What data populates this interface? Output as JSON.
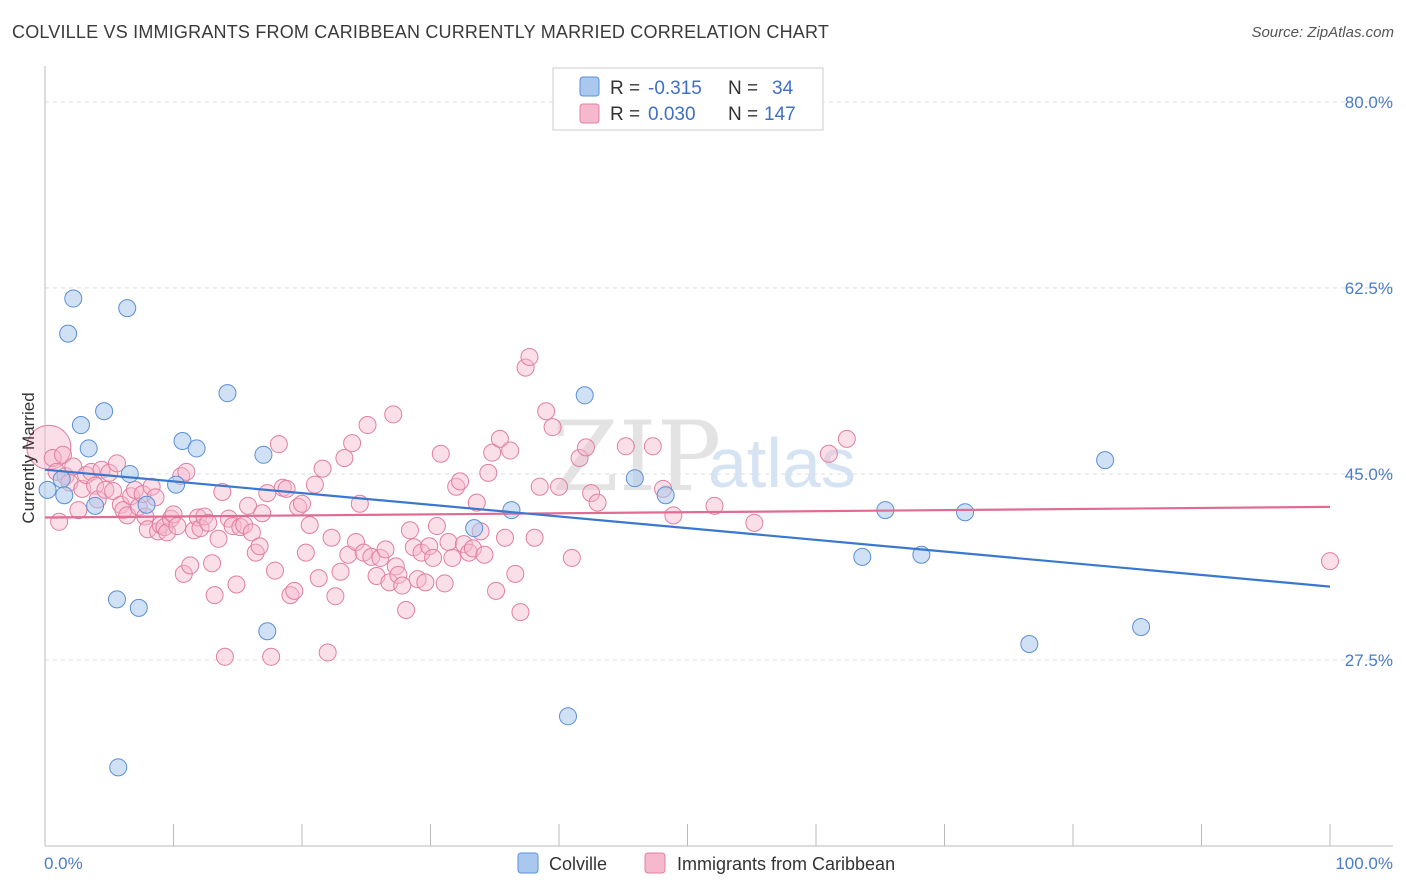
{
  "title": "COLVILLE VS IMMIGRANTS FROM CARIBBEAN CURRENTLY MARRIED CORRELATION CHART",
  "source": "Source: ZipAtlas.com",
  "watermark": {
    "zip": "ZIP",
    "atlas": "atlas"
  },
  "colors": {
    "blue_fill": "#aac8ee",
    "blue_stroke": "#5b8fd6",
    "blue_line": "#3a78d0",
    "pink_fill": "#f6b8cc",
    "pink_stroke": "#e07fa0",
    "pink_line": "#e06c93",
    "tick_color": "#4a7cc9",
    "grid": "#dddddd"
  },
  "legend": {
    "rows": [
      {
        "r_label": "R =",
        "r_value": "-0.315",
        "n_label": "N =",
        "n_value": "34"
      },
      {
        "r_label": "R =",
        "r_value": "0.030",
        "n_label": "N =",
        "n_value": "147"
      }
    ]
  },
  "chart_data": {
    "type": "scatter",
    "title": "COLVILLE VS IMMIGRANTS FROM CARIBBEAN CURRENTLY MARRIED CORRELATION CHART",
    "xlabel": "",
    "ylabel": "Currently Married",
    "xlim": [
      0,
      100
    ],
    "ylim": [
      10,
      83
    ],
    "x_tick_labels": [
      "0.0%",
      "100.0%"
    ],
    "y_ticks": [
      27.5,
      45.0,
      62.5,
      80.0
    ],
    "y_tick_labels": [
      "27.5%",
      "45.0%",
      "62.5%",
      "80.0%"
    ],
    "grid": true,
    "legend_position": "top-center",
    "series": [
      {
        "name": "Colville",
        "R": -0.315,
        "N": 34,
        "trend": {
          "x": [
            0,
            100
          ],
          "y": [
            45.4,
            34.4
          ]
        },
        "points": [
          [
            0.2,
            43.5
          ],
          [
            1.3,
            44.5
          ],
          [
            1.5,
            43.0
          ],
          [
            1.8,
            58.2
          ],
          [
            2.2,
            61.5
          ],
          [
            2.8,
            49.6
          ],
          [
            3.4,
            47.4
          ],
          [
            3.9,
            42.0
          ],
          [
            4.6,
            50.9
          ],
          [
            5.6,
            33.2
          ],
          [
            5.7,
            17.4
          ],
          [
            6.4,
            60.6
          ],
          [
            6.6,
            45.0
          ],
          [
            7.3,
            32.4
          ],
          [
            7.9,
            42.1
          ],
          [
            10.2,
            44.0
          ],
          [
            10.7,
            48.1
          ],
          [
            11.8,
            47.4
          ],
          [
            14.2,
            52.6
          ],
          [
            17.0,
            46.8
          ],
          [
            17.3,
            30.2
          ],
          [
            33.4,
            39.9
          ],
          [
            36.3,
            41.6
          ],
          [
            40.7,
            22.2
          ],
          [
            42.0,
            52.4
          ],
          [
            45.9,
            44.6
          ],
          [
            48.3,
            43.0
          ],
          [
            63.6,
            37.2
          ],
          [
            65.4,
            41.6
          ],
          [
            68.2,
            37.4
          ],
          [
            71.6,
            41.4
          ],
          [
            76.6,
            29.0
          ],
          [
            82.5,
            46.3
          ],
          [
            85.3,
            30.6
          ]
        ]
      },
      {
        "name": "Immigrants from Caribbean",
        "R": 0.03,
        "N": 147,
        "trend": {
          "x": [
            0,
            100
          ],
          "y": [
            40.9,
            41.9
          ]
        },
        "points": [
          [
            0.3,
            47.5
          ],
          [
            0.6,
            46.5
          ],
          [
            0.9,
            45.2
          ],
          [
            1.1,
            40.5
          ],
          [
            1.4,
            46.8
          ],
          [
            1.6,
            44.8
          ],
          [
            1.9,
            44.2
          ],
          [
            2.2,
            45.7
          ],
          [
            2.6,
            41.6
          ],
          [
            2.9,
            43.6
          ],
          [
            3.2,
            44.9
          ],
          [
            3.6,
            45.2
          ],
          [
            3.9,
            43.9
          ],
          [
            4.1,
            42.6
          ],
          [
            4.4,
            45.4
          ],
          [
            4.7,
            43.5
          ],
          [
            5.0,
            45.1
          ],
          [
            5.3,
            43.4
          ],
          [
            5.6,
            46.0
          ],
          [
            5.9,
            42.1
          ],
          [
            6.1,
            41.6
          ],
          [
            6.4,
            41.1
          ],
          [
            6.7,
            42.9
          ],
          [
            7.0,
            43.5
          ],
          [
            7.3,
            41.9
          ],
          [
            7.6,
            43.1
          ],
          [
            7.8,
            41.0
          ],
          [
            8.0,
            39.8
          ],
          [
            8.3,
            43.8
          ],
          [
            8.6,
            42.8
          ],
          [
            8.8,
            39.6
          ],
          [
            9.0,
            40.2
          ],
          [
            9.3,
            40.0
          ],
          [
            9.5,
            39.5
          ],
          [
            9.8,
            40.8
          ],
          [
            10.0,
            41.2
          ],
          [
            10.3,
            40.1
          ],
          [
            10.6,
            44.8
          ],
          [
            10.8,
            35.6
          ],
          [
            11.0,
            45.2
          ],
          [
            11.3,
            36.4
          ],
          [
            11.6,
            39.7
          ],
          [
            11.9,
            40.9
          ],
          [
            12.1,
            39.9
          ],
          [
            12.4,
            41.0
          ],
          [
            12.7,
            40.4
          ],
          [
            13.0,
            36.6
          ],
          [
            13.2,
            33.6
          ],
          [
            13.5,
            38.9
          ],
          [
            13.8,
            43.3
          ],
          [
            14.0,
            27.8
          ],
          [
            14.3,
            40.8
          ],
          [
            14.6,
            40.1
          ],
          [
            14.9,
            34.6
          ],
          [
            15.2,
            40.0
          ],
          [
            15.5,
            40.2
          ],
          [
            15.8,
            42.0
          ],
          [
            16.1,
            39.5
          ],
          [
            16.4,
            37.6
          ],
          [
            16.7,
            38.2
          ],
          [
            16.9,
            41.3
          ],
          [
            17.3,
            43.2
          ],
          [
            17.6,
            27.8
          ],
          [
            17.9,
            35.9
          ],
          [
            18.2,
            47.8
          ],
          [
            18.5,
            43.7
          ],
          [
            18.8,
            43.6
          ],
          [
            19.1,
            33.6
          ],
          [
            19.4,
            34.0
          ],
          [
            19.7,
            41.9
          ],
          [
            20.0,
            42.2
          ],
          [
            20.3,
            37.6
          ],
          [
            20.6,
            40.2
          ],
          [
            21.0,
            44.0
          ],
          [
            21.3,
            35.2
          ],
          [
            21.6,
            45.5
          ],
          [
            22.0,
            28.2
          ],
          [
            22.3,
            39.0
          ],
          [
            22.6,
            33.5
          ],
          [
            23.0,
            35.8
          ],
          [
            23.3,
            46.5
          ],
          [
            23.6,
            37.4
          ],
          [
            23.9,
            47.9
          ],
          [
            24.2,
            38.6
          ],
          [
            24.5,
            42.2
          ],
          [
            24.8,
            37.6
          ],
          [
            25.1,
            49.6
          ],
          [
            25.4,
            37.2
          ],
          [
            25.8,
            35.4
          ],
          [
            26.1,
            37.1
          ],
          [
            26.5,
            37.9
          ],
          [
            26.8,
            34.8
          ],
          [
            27.1,
            50.6
          ],
          [
            27.3,
            36.3
          ],
          [
            27.5,
            35.5
          ],
          [
            27.8,
            34.5
          ],
          [
            28.1,
            32.2
          ],
          [
            28.4,
            39.7
          ],
          [
            28.7,
            38.1
          ],
          [
            29.0,
            35.1
          ],
          [
            29.3,
            37.6
          ],
          [
            29.6,
            34.8
          ],
          [
            29.9,
            38.2
          ],
          [
            30.2,
            37.1
          ],
          [
            30.5,
            40.1
          ],
          [
            30.8,
            46.9
          ],
          [
            31.1,
            34.7
          ],
          [
            31.4,
            38.6
          ],
          [
            31.7,
            37.1
          ],
          [
            32.0,
            43.8
          ],
          [
            32.3,
            44.3
          ],
          [
            32.6,
            38.4
          ],
          [
            33.0,
            37.6
          ],
          [
            33.3,
            38.0
          ],
          [
            33.6,
            42.3
          ],
          [
            33.9,
            39.6
          ],
          [
            34.2,
            37.4
          ],
          [
            34.5,
            45.1
          ],
          [
            34.8,
            47.0
          ],
          [
            35.1,
            34.0
          ],
          [
            35.4,
            48.3
          ],
          [
            35.8,
            39.0
          ],
          [
            36.2,
            47.2
          ],
          [
            36.6,
            35.6
          ],
          [
            37.0,
            32.0
          ],
          [
            37.4,
            55.0
          ],
          [
            37.7,
            56.0
          ],
          [
            38.1,
            39.0
          ],
          [
            38.5,
            43.8
          ],
          [
            39.0,
            50.9
          ],
          [
            39.5,
            49.4
          ],
          [
            40.0,
            43.8
          ],
          [
            41.0,
            37.1
          ],
          [
            41.6,
            46.5
          ],
          [
            42.1,
            47.5
          ],
          [
            42.5,
            43.2
          ],
          [
            43.0,
            42.3
          ],
          [
            45.2,
            47.6
          ],
          [
            47.3,
            47.6
          ],
          [
            48.1,
            43.6
          ],
          [
            48.9,
            41.1
          ],
          [
            52.1,
            42.0
          ],
          [
            55.2,
            40.4
          ],
          [
            61.0,
            46.9
          ],
          [
            62.4,
            48.3
          ],
          [
            100.0,
            36.8
          ]
        ]
      }
    ]
  },
  "bottom_legend": [
    "Colville",
    "Immigrants from Caribbean"
  ]
}
